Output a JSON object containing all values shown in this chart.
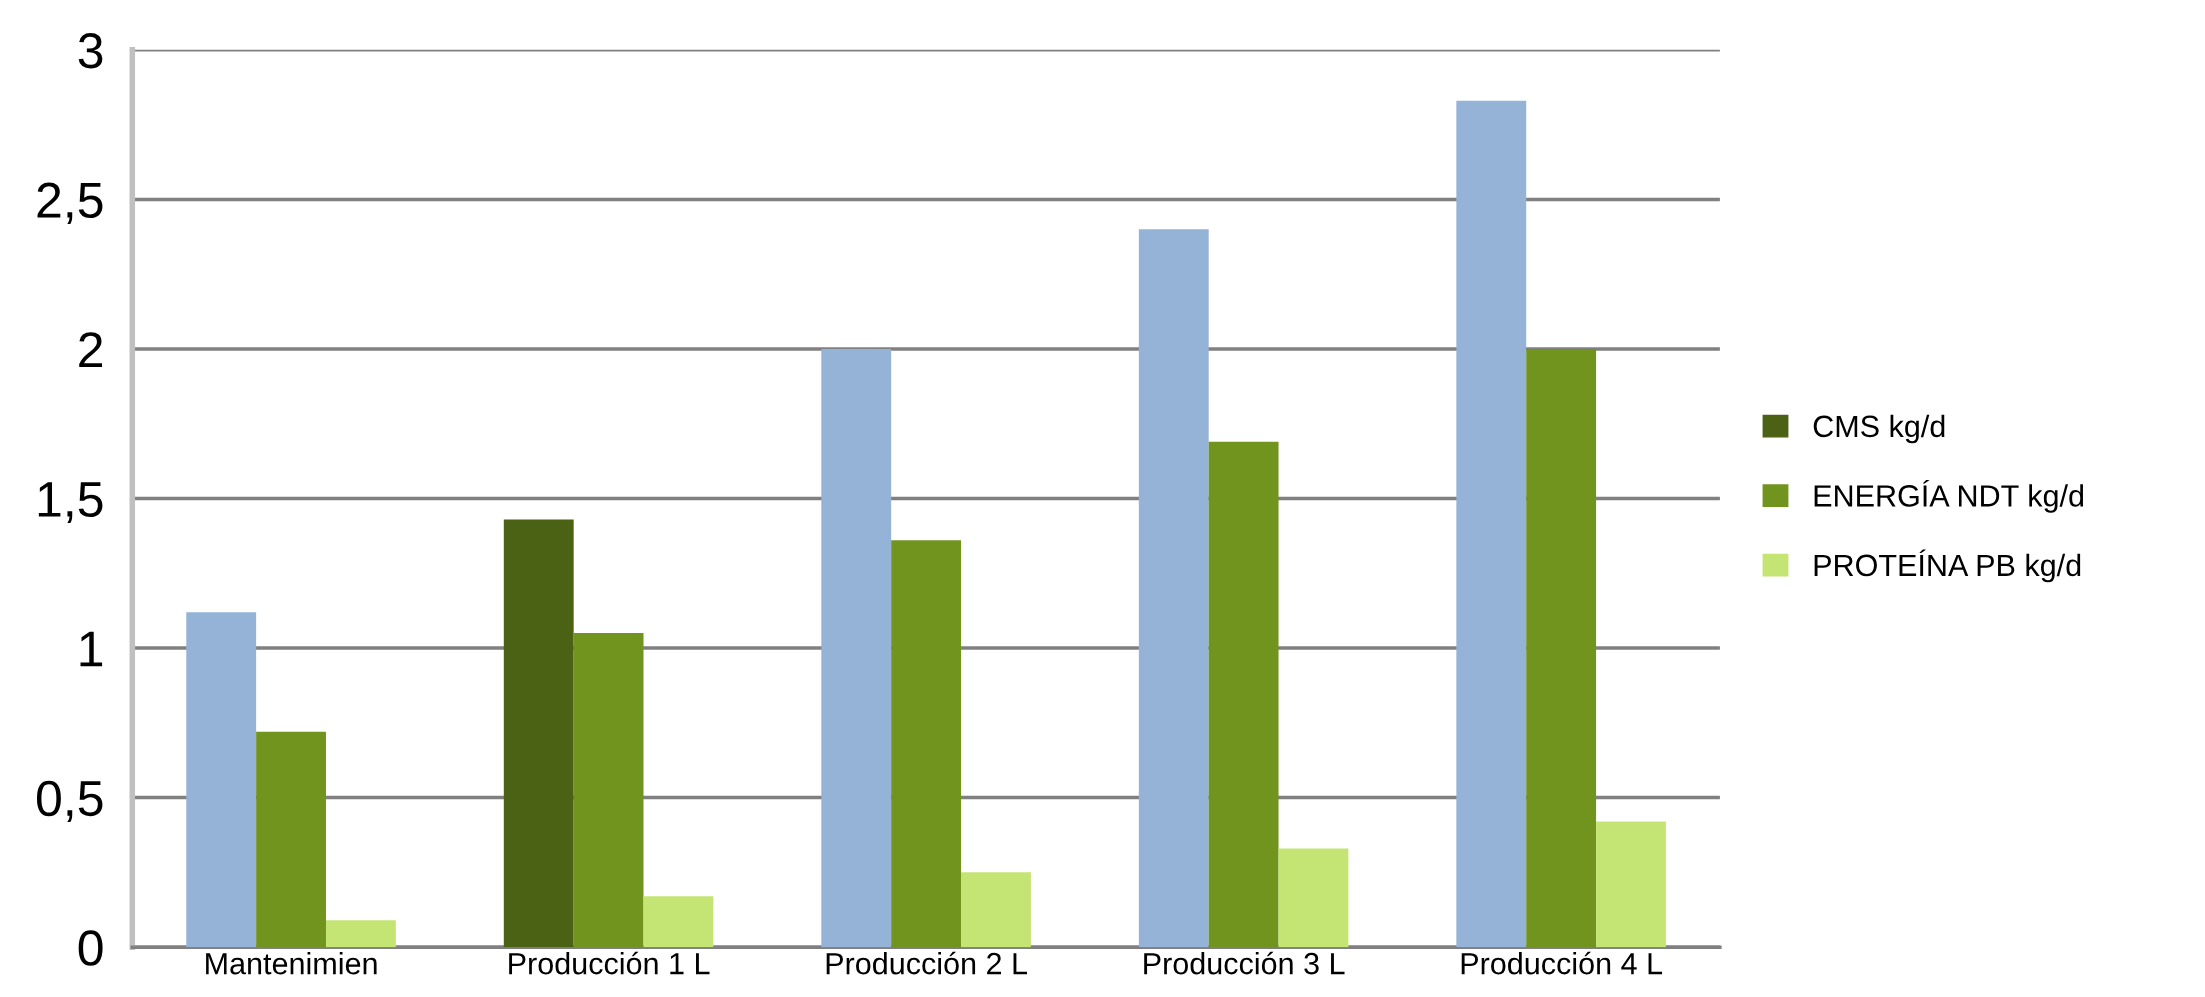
{
  "chart_data": {
    "type": "bar",
    "categories": [
      "Mantenimien",
      "Producción 1 L",
      "Producción 2 L",
      "Producción 3 L",
      "Producción 4 L"
    ],
    "series": [
      {
        "name": "CMS kg/d",
        "color": "#4b6114",
        "colors": [
          "#95b3d7",
          "#4b6114",
          "#95b3d7",
          "#95b3d7",
          "#95b3d7"
        ],
        "values": [
          1.12,
          1.43,
          2.0,
          2.4,
          2.83
        ]
      },
      {
        "name": "ENERGÍA NDT kg/d",
        "color": "#71941e",
        "values": [
          0.72,
          1.05,
          1.36,
          1.69,
          2.0
        ]
      },
      {
        "name": "PROTEÍNA PB kg/d",
        "color": "#c4e574",
        "values": [
          0.09,
          0.17,
          0.25,
          0.33,
          0.42
        ]
      }
    ],
    "ylim": [
      0,
      3
    ],
    "yticks": [
      0,
      {
        "value": 0.5,
        "label": "0,5"
      },
      1,
      {
        "value": 1.5,
        "label": "1,5"
      },
      2,
      {
        "value": 2.5,
        "label": "2,5"
      },
      3
    ],
    "grid": "y",
    "legend": "right"
  }
}
